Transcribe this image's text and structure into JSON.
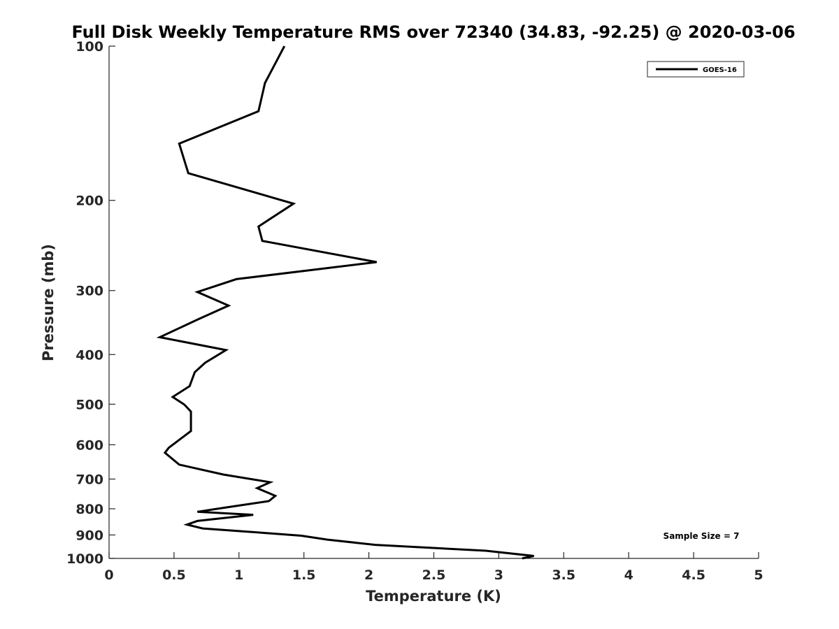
{
  "chart_data": {
    "type": "line",
    "title": "Full Disk Weekly Temperature RMS over 72340 (34.83, -92.25) @ 2020-03-06",
    "xlabel": "Temperature (K)",
    "ylabel": "Pressure (mb)",
    "xlim": [
      0,
      5
    ],
    "ylim": [
      100,
      1000
    ],
    "y_scale": "log",
    "y_reversed": true,
    "xticks": [
      "0",
      "0.5",
      "1",
      "1.5",
      "2",
      "2.5",
      "3",
      "3.5",
      "4",
      "4.5",
      "5"
    ],
    "yticks": [
      "100",
      "200",
      "300",
      "400",
      "500",
      "600",
      "700",
      "800",
      "900",
      "1000"
    ],
    "grid": false,
    "legend_position": "top-right",
    "annotation": "Sample Size = 7",
    "series": [
      {
        "name": "GOES-16",
        "color": "#000000",
        "x": [
          1.35,
          1.2,
          1.15,
          0.54,
          0.61,
          1.42,
          1.15,
          1.18,
          2.06,
          0.98,
          0.68,
          0.92,
          0.68,
          0.39,
          0.9,
          0.74,
          0.66,
          0.62,
          0.49,
          0.58,
          0.63,
          0.63,
          0.46,
          0.43,
          0.54,
          0.88,
          1.24,
          1.14,
          1.28,
          1.23,
          0.89,
          0.68,
          1.11,
          0.68,
          0.6,
          0.72,
          1.15,
          1.48,
          1.68,
          2.05,
          2.9,
          3.27,
          3.18
        ],
        "y": [
          100,
          118,
          134,
          155,
          177,
          203,
          225,
          240,
          264,
          285,
          302,
          321,
          342,
          370,
          392,
          415,
          433,
          461,
          484,
          501,
          517,
          564,
          608,
          622,
          656,
          686,
          710,
          729,
          755,
          773,
          796,
          811,
          822,
          845,
          859,
          874,
          890,
          903,
          919,
          941,
          966,
          989,
          1000
        ]
      }
    ]
  }
}
